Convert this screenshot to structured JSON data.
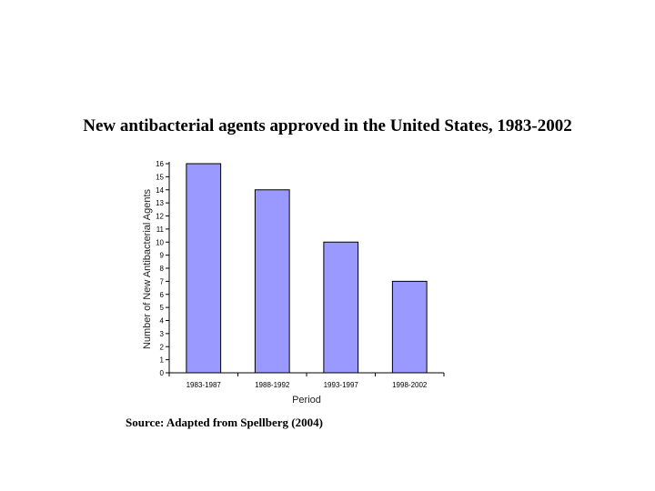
{
  "title": "New antibacterial agents approved in the United States, 1983-2002",
  "source": "Source:  Adapted from Spellberg (2004)",
  "chart_data": {
    "type": "bar",
    "title": "New antibacterial agents approved in the United States, 1983-2002",
    "xlabel": "Period",
    "ylabel": "Number of New Antibacterial Agents",
    "categories": [
      "1983-1987",
      "1988-1992",
      "1993-1997",
      "1998-2002"
    ],
    "values": [
      16,
      14,
      10,
      7
    ],
    "ylim": [
      0,
      16
    ],
    "yticks": [
      0,
      1,
      2,
      3,
      4,
      5,
      6,
      7,
      8,
      9,
      10,
      11,
      12,
      13,
      14,
      15,
      16
    ],
    "grid": false,
    "legend": "none",
    "bar_color": "#9999ff",
    "bar_edge_color": "#000000"
  }
}
